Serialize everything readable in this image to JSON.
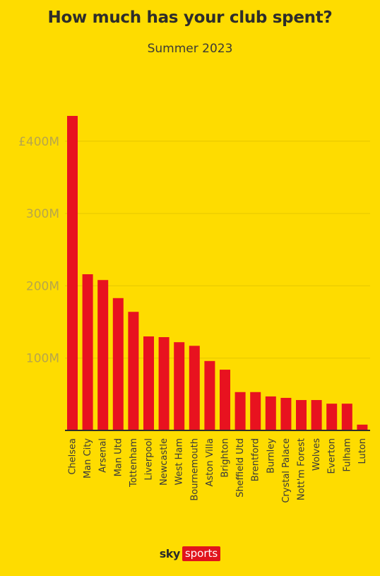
{
  "chart_data": {
    "type": "bar",
    "title": "How much has your club spent?",
    "subtitle": "Summer 2023",
    "categories": [
      "Chelsea",
      "Man City",
      "Arsenal",
      "Man Utd",
      "Tottenham",
      "Liverpool",
      "Newcastle",
      "West Ham",
      "Bournemouth",
      "Aston Villa",
      "Brighton",
      "Sheffield Utd",
      "Brentford",
      "Burnley",
      "Crystal Palace",
      "Nott'm Forest",
      "Wolves",
      "Everton",
      "Fulham",
      "Luton"
    ],
    "values": [
      435,
      216,
      208,
      183,
      164,
      130,
      129,
      122,
      117,
      96,
      84,
      53,
      53,
      47,
      45,
      42,
      42,
      37,
      37,
      8
    ],
    "ylim": [
      0,
      435
    ],
    "yticks": [
      100,
      200,
      300,
      400
    ],
    "ytick_labels": [
      "100M",
      "200M",
      "300M",
      "£400M"
    ],
    "grid": true,
    "colors": {
      "background": "#FEDC00",
      "bar": "#E8121F",
      "axis": "#2e2d2b",
      "grid": "#e6c700",
      "tick_label": "#b8a64a"
    }
  },
  "branding": {
    "logo_sky": "sky",
    "logo_sports": "sports"
  }
}
